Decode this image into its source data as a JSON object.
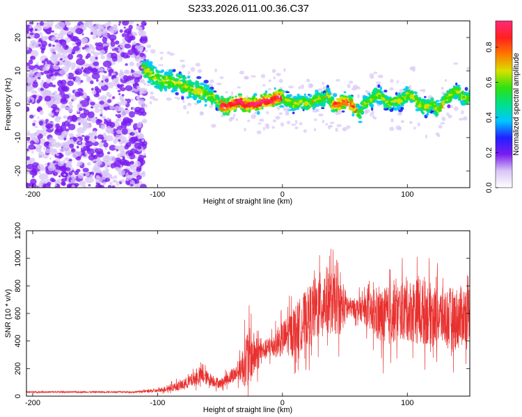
{
  "title": "S233.2026.011.00.36.C37",
  "colors": {
    "snr_line": "#e8312f",
    "scatter_purple": "#7a1cf0",
    "scatter_light": "#d8c6f6"
  },
  "chart_data": [
    {
      "type": "heatmap",
      "name": "spectrogram",
      "xlabel": "Height of straight line (km)",
      "ylabel": "Frequency (Hz)",
      "xlim": [
        -205,
        150
      ],
      "ylim": [
        -25,
        25
      ],
      "xticks": [
        -200,
        -100,
        0,
        100
      ],
      "yticks": [
        -20,
        -10,
        0,
        10,
        20
      ],
      "colorbar": {
        "label": "Normalized spectral amplitude",
        "range": [
          0.0,
          0.95
        ],
        "ticks": [
          0.0,
          0.2,
          0.4,
          0.6,
          0.8
        ],
        "tick_labels": [
          "0.0",
          "0.2",
          "0.4",
          "0.6",
          "0.8"
        ],
        "colormap": [
          "#ffffff",
          "#d8c6f6",
          "#7a1cf0",
          "#2020ff",
          "#00c8ff",
          "#00e08a",
          "#30e010",
          "#d8e000",
          "#ff7800",
          "#ff2020",
          "#ff2a7a"
        ]
      },
      "ridge": [
        [
          -112,
          11
        ],
        [
          -105,
          9
        ],
        [
          -98,
          7
        ],
        [
          -90,
          7
        ],
        [
          -82,
          6
        ],
        [
          -75,
          5
        ],
        [
          -68,
          4
        ],
        [
          -60,
          3
        ],
        [
          -55,
          2
        ],
        [
          -50,
          0
        ],
        [
          -45,
          -1
        ],
        [
          -40,
          0
        ],
        [
          -35,
          1
        ],
        [
          -30,
          0
        ],
        [
          -25,
          0
        ],
        [
          -20,
          0
        ],
        [
          -15,
          1
        ],
        [
          -10,
          1
        ],
        [
          -5,
          2
        ],
        [
          0,
          2
        ],
        [
          5,
          1
        ],
        [
          10,
          0
        ],
        [
          15,
          1
        ],
        [
          20,
          0
        ],
        [
          25,
          1
        ],
        [
          30,
          2
        ],
        [
          33,
          1
        ],
        [
          36,
          3
        ],
        [
          40,
          0
        ],
        [
          45,
          0
        ],
        [
          50,
          1
        ],
        [
          55,
          0
        ],
        [
          58,
          -1
        ],
        [
          62,
          -3
        ],
        [
          65,
          0
        ],
        [
          70,
          1
        ],
        [
          75,
          3
        ],
        [
          80,
          2
        ],
        [
          85,
          0
        ],
        [
          90,
          1
        ],
        [
          95,
          1
        ],
        [
          100,
          3
        ],
        [
          105,
          2
        ],
        [
          110,
          0
        ],
        [
          115,
          -1
        ],
        [
          120,
          0
        ],
        [
          125,
          -2
        ],
        [
          130,
          1
        ],
        [
          135,
          3
        ],
        [
          140,
          4
        ],
        [
          145,
          2
        ],
        [
          150,
          2
        ]
      ]
    },
    {
      "type": "line",
      "name": "snr",
      "xlabel": "Height of straight line (km)",
      "ylabel": "SNR (10 * v/v)",
      "xlim": [
        -205,
        150
      ],
      "ylim": [
        0,
        1200
      ],
      "xticks": [
        -200,
        -100,
        0,
        100
      ],
      "yticks": [
        0,
        200,
        400,
        600,
        800,
        1000,
        1200
      ],
      "envelope": [
        {
          "x": -205,
          "base": 30,
          "amp": 10
        },
        {
          "x": -120,
          "base": 30,
          "amp": 10
        },
        {
          "x": -100,
          "base": 40,
          "amp": 25
        },
        {
          "x": -80,
          "base": 80,
          "amp": 70
        },
        {
          "x": -65,
          "base": 150,
          "amp": 110
        },
        {
          "x": -50,
          "base": 90,
          "amp": 60
        },
        {
          "x": -35,
          "base": 180,
          "amp": 120
        },
        {
          "x": -28,
          "base": 280,
          "amp": 420
        },
        {
          "x": -15,
          "base": 330,
          "amp": 120
        },
        {
          "x": -5,
          "base": 380,
          "amp": 180
        },
        {
          "x": 10,
          "base": 480,
          "amp": 330
        },
        {
          "x": 25,
          "base": 620,
          "amp": 420
        },
        {
          "x": 35,
          "base": 700,
          "amp": 450
        },
        {
          "x": 45,
          "base": 650,
          "amp": 380
        },
        {
          "x": 55,
          "base": 640,
          "amp": 120
        },
        {
          "x": 65,
          "base": 630,
          "amp": 180
        },
        {
          "x": 80,
          "base": 560,
          "amp": 400
        },
        {
          "x": 95,
          "base": 620,
          "amp": 380
        },
        {
          "x": 110,
          "base": 620,
          "amp": 450
        },
        {
          "x": 125,
          "base": 580,
          "amp": 380
        },
        {
          "x": 140,
          "base": 560,
          "amp": 420
        },
        {
          "x": 150,
          "base": 620,
          "amp": 380
        }
      ]
    }
  ]
}
